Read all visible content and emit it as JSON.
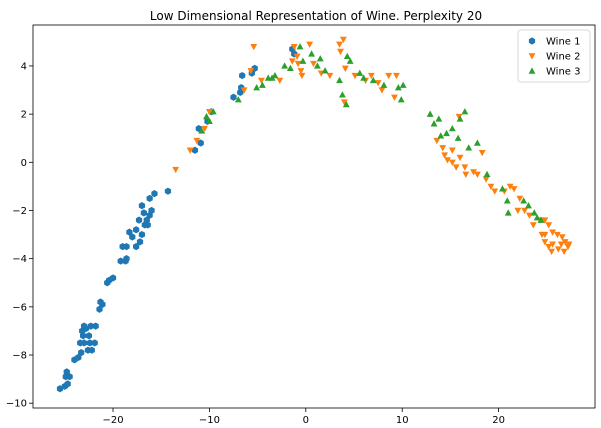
{
  "chart_data": {
    "type": "scatter",
    "title": "Low Dimensional Representation of Wine. Perplexity 20",
    "xlabel": "",
    "ylabel": "",
    "xlim": [
      -28.3,
      30.0
    ],
    "ylim": [
      -10.2,
      5.7
    ],
    "xticks": [
      -20,
      -10,
      0,
      10,
      20
    ],
    "yticks": [
      -10,
      -8,
      -6,
      -4,
      -2,
      0,
      2,
      4
    ],
    "grid": false,
    "legend_position": "top-right",
    "series": [
      {
        "name": "Wine 1",
        "marker": "hexagon",
        "color": "#1f77b4",
        "points": [
          [
            -25.5,
            -9.4
          ],
          [
            -25.0,
            -9.3
          ],
          [
            -24.7,
            -9.2
          ],
          [
            -24.9,
            -8.9
          ],
          [
            -24.5,
            -8.9
          ],
          [
            -24.8,
            -8.7
          ],
          [
            -24.0,
            -8.2
          ],
          [
            -23.6,
            -8.1
          ],
          [
            -23.3,
            -7.9
          ],
          [
            -22.6,
            -7.8
          ],
          [
            -22.2,
            -7.8
          ],
          [
            -23.4,
            -7.5
          ],
          [
            -23.0,
            -7.5
          ],
          [
            -22.4,
            -7.5
          ],
          [
            -21.9,
            -7.5
          ],
          [
            -23.1,
            -7.2
          ],
          [
            -22.5,
            -7.2
          ],
          [
            -23.2,
            -7.0
          ],
          [
            -22.8,
            -6.9
          ],
          [
            -22.3,
            -6.8
          ],
          [
            -21.8,
            -6.8
          ],
          [
            -23.0,
            -6.8
          ],
          [
            -21.4,
            -6.1
          ],
          [
            -21.1,
            -5.9
          ],
          [
            -21.3,
            -5.8
          ],
          [
            -20.6,
            -5.0
          ],
          [
            -20.4,
            -4.9
          ],
          [
            -20.0,
            -4.8
          ],
          [
            -19.2,
            -4.1
          ],
          [
            -18.7,
            -4.1
          ],
          [
            -18.6,
            -4.0
          ],
          [
            -19.0,
            -3.5
          ],
          [
            -18.6,
            -3.5
          ],
          [
            -17.6,
            -3.5
          ],
          [
            -17.2,
            -3.3
          ],
          [
            -18.0,
            -3.1
          ],
          [
            -17.0,
            -3.0
          ],
          [
            -18.3,
            -2.9
          ],
          [
            -17.6,
            -2.8
          ],
          [
            -16.7,
            -2.6
          ],
          [
            -16.4,
            -2.6
          ],
          [
            -16.5,
            -2.4
          ],
          [
            -17.3,
            -2.4
          ],
          [
            -16.2,
            -2.2
          ],
          [
            -16.8,
            -2.1
          ],
          [
            -16.0,
            -2.0
          ],
          [
            -17.0,
            -1.8
          ],
          [
            -16.2,
            -1.5
          ],
          [
            -15.7,
            -1.3
          ],
          [
            -14.3,
            -1.2
          ],
          [
            -11.5,
            0.5
          ],
          [
            -10.9,
            0.8
          ],
          [
            -11.1,
            1.4
          ],
          [
            -10.2,
            1.7
          ],
          [
            -9.8,
            2.1
          ],
          [
            -7.5,
            2.7
          ],
          [
            -6.8,
            2.9
          ],
          [
            -6.7,
            3.1
          ],
          [
            -6.6,
            3.6
          ],
          [
            -5.6,
            3.7
          ],
          [
            -5.3,
            3.9
          ],
          [
            -1.4,
            4.7
          ],
          [
            -1.2,
            4.5
          ]
        ]
      },
      {
        "name": "Wine 2",
        "marker": "triangle-down",
        "color": "#ff7f0e",
        "points": [
          [
            -13.5,
            -0.3
          ],
          [
            -12.0,
            0.5
          ],
          [
            -11.3,
            0.9
          ],
          [
            -10.5,
            1.4
          ],
          [
            -10.0,
            2.1
          ],
          [
            -6.4,
            3.0
          ],
          [
            -5.7,
            3.8
          ],
          [
            -5.4,
            4.8
          ],
          [
            -4.6,
            3.4
          ],
          [
            -2.7,
            3.4
          ],
          [
            -1.4,
            4.2
          ],
          [
            -0.9,
            4.4
          ],
          [
            -0.8,
            4.1
          ],
          [
            -0.5,
            3.8
          ],
          [
            -0.4,
            3.6
          ],
          [
            -1.2,
            4.8
          ],
          [
            0.4,
            4.9
          ],
          [
            0.8,
            4.1
          ],
          [
            1.6,
            3.7
          ],
          [
            2.5,
            3.6
          ],
          [
            3.5,
            4.9
          ],
          [
            3.6,
            4.6
          ],
          [
            3.9,
            5.1
          ],
          [
            4.1,
            3.9
          ],
          [
            4.0,
            2.5
          ],
          [
            5.1,
            3.6
          ],
          [
            6.2,
            3.4
          ],
          [
            6.8,
            3.6
          ],
          [
            7.5,
            3.3
          ],
          [
            7.9,
            3.0
          ],
          [
            8.6,
            3.6
          ],
          [
            9.2,
            2.7
          ],
          [
            9.4,
            3.6
          ],
          [
            13.6,
            0.9
          ],
          [
            14.2,
            0.6
          ],
          [
            14.4,
            0.3
          ],
          [
            14.7,
            0.1
          ],
          [
            15.2,
            0.0
          ],
          [
            15.6,
            -0.2
          ],
          [
            15.2,
            0.5
          ],
          [
            16.0,
            0.2
          ],
          [
            15.9,
            1.9
          ],
          [
            16.5,
            -0.2
          ],
          [
            16.6,
            -0.5
          ],
          [
            17.4,
            -0.4
          ],
          [
            17.8,
            -0.5
          ],
          [
            18.3,
            0.4
          ],
          [
            18.7,
            -0.7
          ],
          [
            19.2,
            -1.0
          ],
          [
            19.6,
            -1.2
          ],
          [
            20.6,
            -1.2
          ],
          [
            21.2,
            -1.0
          ],
          [
            21.6,
            -1.1
          ],
          [
            22.2,
            -1.5
          ],
          [
            22.7,
            -2.0
          ],
          [
            22.0,
            -2.0
          ],
          [
            23.2,
            -2.2
          ],
          [
            23.6,
            -2.6
          ],
          [
            24.3,
            -2.4
          ],
          [
            24.8,
            -2.4
          ],
          [
            25.2,
            -2.6
          ],
          [
            24.8,
            -3.0
          ],
          [
            25.6,
            -2.9
          ],
          [
            26.1,
            -3.0
          ],
          [
            26.6,
            -3.1
          ],
          [
            26.9,
            -3.3
          ],
          [
            27.2,
            -3.5
          ],
          [
            26.5,
            -3.4
          ],
          [
            25.6,
            -3.4
          ],
          [
            25.2,
            -3.5
          ],
          [
            24.8,
            -3.3
          ],
          [
            24.5,
            -3.0
          ],
          [
            25.5,
            -3.7
          ],
          [
            26.2,
            -3.6
          ],
          [
            26.8,
            -3.7
          ],
          [
            27.3,
            -3.4
          ]
        ]
      },
      {
        "name": "Wine 3",
        "marker": "triangle-up",
        "color": "#2ca02c",
        "points": [
          [
            -10.8,
            1.3
          ],
          [
            -10.3,
            1.9
          ],
          [
            -9.6,
            2.1
          ],
          [
            -10.0,
            1.7
          ],
          [
            -7.0,
            2.6
          ],
          [
            -5.1,
            3.1
          ],
          [
            -4.5,
            3.2
          ],
          [
            -3.5,
            3.5
          ],
          [
            -3.2,
            3.6
          ],
          [
            -3.9,
            3.5
          ],
          [
            -2.2,
            4.0
          ],
          [
            -1.6,
            3.9
          ],
          [
            -0.3,
            4.2
          ],
          [
            -0.6,
            4.8
          ],
          [
            0.6,
            4.5
          ],
          [
            1.2,
            4.0
          ],
          [
            1.5,
            4.3
          ],
          [
            2.0,
            3.8
          ],
          [
            3.5,
            3.4
          ],
          [
            4.3,
            4.4
          ],
          [
            4.6,
            4.2
          ],
          [
            5.6,
            3.7
          ],
          [
            3.8,
            2.8
          ],
          [
            4.2,
            2.4
          ],
          [
            6.0,
            3.5
          ],
          [
            7.0,
            3.4
          ],
          [
            8.1,
            3.2
          ],
          [
            9.6,
            3.1
          ],
          [
            9.9,
            2.6
          ],
          [
            10.1,
            3.2
          ],
          [
            12.9,
            2.0
          ],
          [
            13.3,
            1.6
          ],
          [
            13.8,
            1.8
          ],
          [
            14.0,
            1.1
          ],
          [
            14.6,
            1.2
          ],
          [
            15.2,
            1.4
          ],
          [
            15.8,
            1.0
          ],
          [
            16.0,
            1.8
          ],
          [
            16.5,
            2.1
          ],
          [
            16.9,
            0.6
          ],
          [
            17.8,
            0.8
          ],
          [
            18.8,
            -0.5
          ],
          [
            20.4,
            -1.1
          ],
          [
            20.9,
            -1.6
          ],
          [
            21.0,
            -2.1
          ],
          [
            22.6,
            -1.6
          ],
          [
            23.1,
            -1.8
          ],
          [
            24.0,
            -2.3
          ],
          [
            23.7,
            -2.1
          ],
          [
            24.4,
            -2.4
          ]
        ]
      }
    ]
  }
}
